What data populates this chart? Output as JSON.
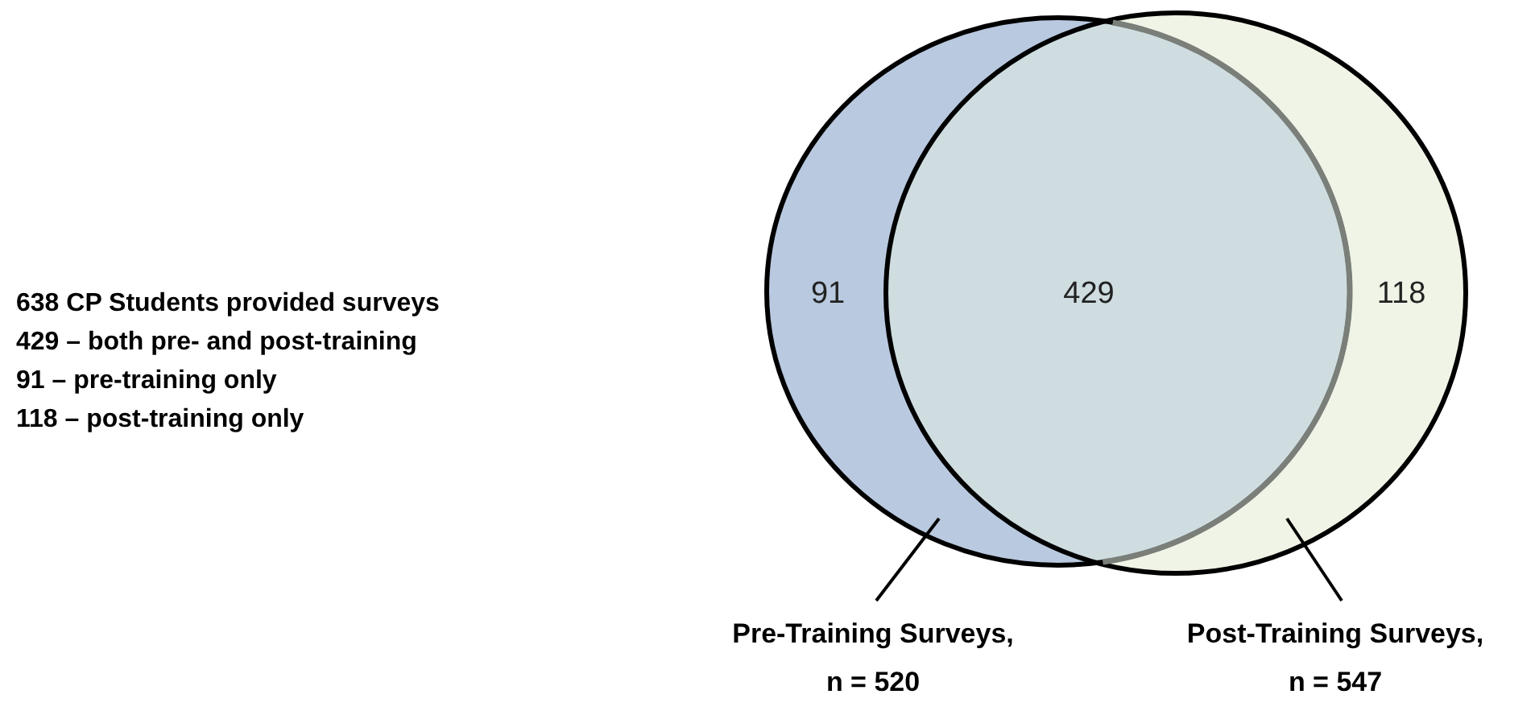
{
  "chart_data": {
    "type": "other",
    "categories": [
      null,
      null,
      null
    ],
    "values": [
      91,
      429,
      118
    ],
    "colors": [
      "#b9c9df",
      "#cfdde0",
      "#f0f4e6"
    ],
    "data_labels": true,
    "annotations": [
      "638 CP Students provided surveys",
      "429 – both pre- and post-training",
      "91 – pre-training only",
      "118 – post-training only",
      "Pre-Training Surveys,\nn = 520",
      "Post-Training Surveys,\nn = 547"
    ]
  }
}
